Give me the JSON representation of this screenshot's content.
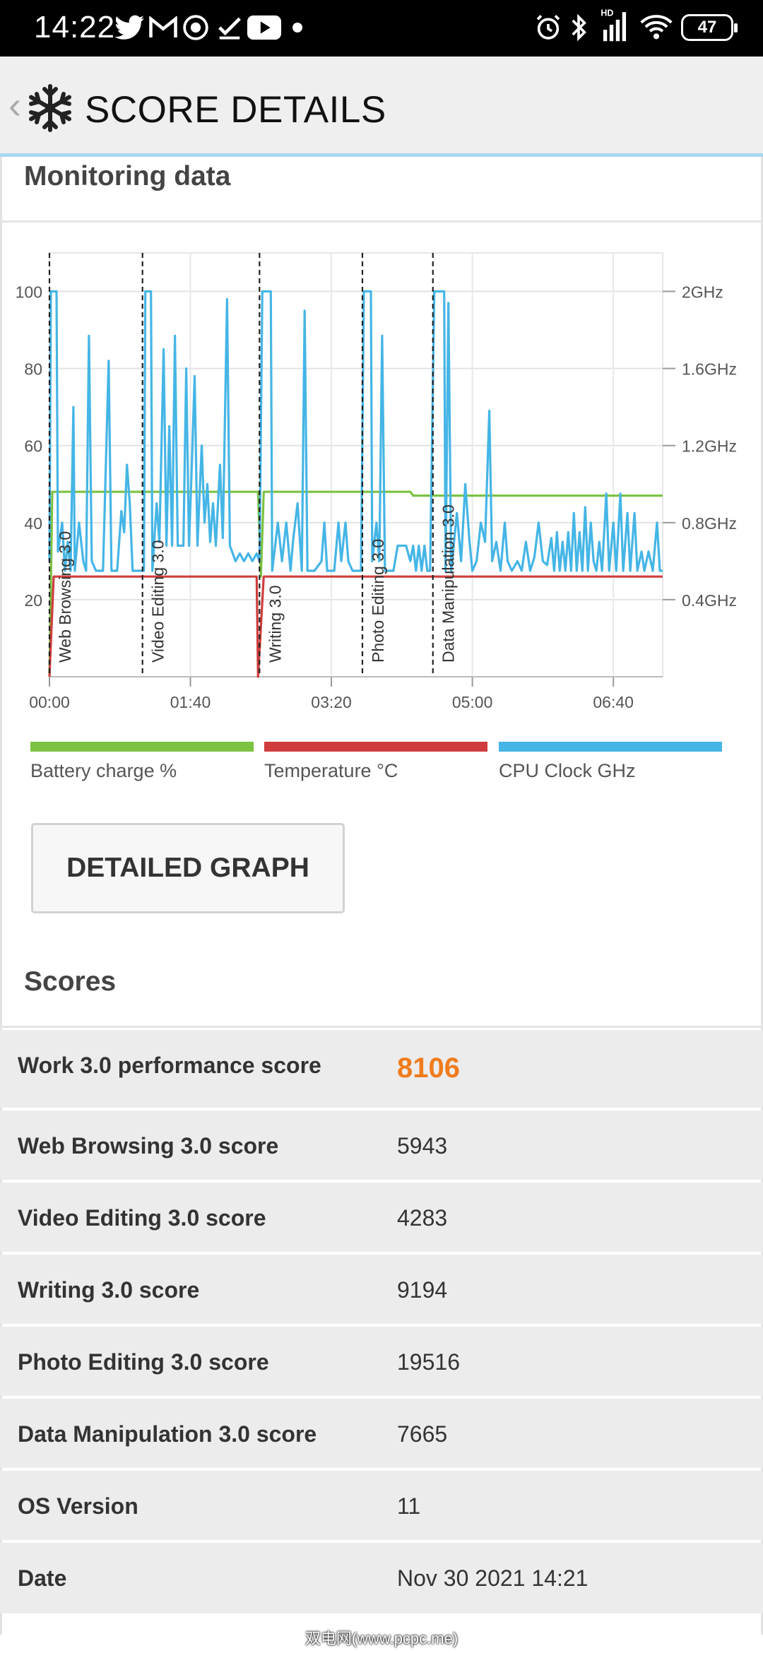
{
  "status_bar": {
    "time": "14:22",
    "battery_level": "47",
    "left_icons": [
      "twitter-icon",
      "gmail-icon",
      "screen-record-icon",
      "task-check-icon",
      "youtube-icon",
      "notification-dot-icon"
    ],
    "right_icons": [
      "alarm-icon",
      "bluetooth-icon",
      "signal-icon",
      "wifi-icon",
      "battery-icon"
    ],
    "network_badge": "HD"
  },
  "header": {
    "back_icon": "chevron-left-icon",
    "logo_icon": "snowflake-icon",
    "title": "SCORE DETAILS"
  },
  "monitoring": {
    "section_title": "Monitoring data",
    "legend": [
      {
        "label": "Battery charge %",
        "color": "#7cc243"
      },
      {
        "label": "Temperature °C",
        "color": "#cf3d3d"
      },
      {
        "label": "CPU Clock GHz",
        "color": "#45b5e6"
      }
    ],
    "button_label": "DETAILED GRAPH"
  },
  "chart_data": {
    "type": "line",
    "x_unit": "minutes",
    "x_ticks": [
      "00:00",
      "01:40",
      "03:20",
      "05:00",
      "06:40"
    ],
    "x_tick_values": [
      0,
      100,
      200,
      300,
      400
    ],
    "xlim": [
      0,
      435
    ],
    "ylim_left": [
      0,
      110
    ],
    "left_ticks": [
      "100",
      "80",
      "60",
      "40",
      "20"
    ],
    "left_tick_values": [
      100,
      80,
      60,
      40,
      20
    ],
    "ylim_right_ghz": [
      0,
      2.2
    ],
    "right_ticks": [
      "2GHz",
      "1.6GHz",
      "1.2GHz",
      "0.8GHz",
      "0.4GHz"
    ],
    "right_tick_values": [
      2.0,
      1.6,
      1.2,
      0.8,
      0.4
    ],
    "grid": true,
    "phase_markers": [
      {
        "label": "Web Browsing 3.0",
        "x": 0
      },
      {
        "label": "Video Editing 3.0",
        "x": 66
      },
      {
        "label": "Writing 3.0",
        "x": 149
      },
      {
        "label": "Photo Editing 3.0",
        "x": 222
      },
      {
        "label": "Data Manipulation 3.0",
        "x": 272
      }
    ],
    "series": [
      {
        "name": "Battery charge %",
        "axis": "left",
        "color": "#7cc243",
        "points": [
          [
            0,
            0
          ],
          [
            2,
            48
          ],
          [
            100,
            48
          ],
          [
            148,
            48
          ],
          [
            150,
            26
          ],
          [
            152,
            48
          ],
          [
            200,
            48
          ],
          [
            256,
            48
          ],
          [
            258,
            47
          ],
          [
            435,
            47
          ]
        ]
      },
      {
        "name": "Temperature °C",
        "axis": "left",
        "color": "#cf3d3d",
        "points": [
          [
            0,
            0
          ],
          [
            3,
            26
          ],
          [
            147,
            26
          ],
          [
            148,
            0
          ],
          [
            152,
            26
          ],
          [
            435,
            26
          ]
        ]
      },
      {
        "name": "CPU Clock GHz",
        "axis": "right",
        "color": "#45b5e6",
        "points": [
          [
            0,
            0.6
          ],
          [
            1,
            2.0
          ],
          [
            5,
            2.0
          ],
          [
            6,
            0.65
          ],
          [
            9,
            0.8
          ],
          [
            11,
            0.55
          ],
          [
            13,
            0.7
          ],
          [
            15,
            0.55
          ],
          [
            17,
            1.4
          ],
          [
            18,
            0.55
          ],
          [
            21,
            0.8
          ],
          [
            24,
            0.6
          ],
          [
            26,
            0.55
          ],
          [
            28,
            1.77
          ],
          [
            30,
            0.6
          ],
          [
            33,
            0.55
          ],
          [
            38,
            0.55
          ],
          [
            42,
            1.64
          ],
          [
            44,
            0.55
          ],
          [
            48,
            0.55
          ],
          [
            51,
            0.86
          ],
          [
            53,
            0.75
          ],
          [
            55,
            1.1
          ],
          [
            57,
            0.9
          ],
          [
            59,
            0.55
          ],
          [
            63,
            0.55
          ],
          [
            67,
            0.55
          ],
          [
            68,
            2.0
          ],
          [
            72,
            2.0
          ],
          [
            73,
            0.55
          ],
          [
            76,
            0.9
          ],
          [
            78,
            0.7
          ],
          [
            81,
            1.7
          ],
          [
            83,
            0.68
          ],
          [
            85,
            1.3
          ],
          [
            87,
            0.68
          ],
          [
            89,
            1.77
          ],
          [
            91,
            0.68
          ],
          [
            95,
            0.68
          ],
          [
            97,
            1.6
          ],
          [
            99,
            0.68
          ],
          [
            101,
            1.1
          ],
          [
            103,
            1.56
          ],
          [
            105,
            0.68
          ],
          [
            108,
            1.2
          ],
          [
            110,
            0.8
          ],
          [
            112,
            1.0
          ],
          [
            114,
            0.7
          ],
          [
            116,
            0.9
          ],
          [
            118,
            0.68
          ],
          [
            121,
            1.1
          ],
          [
            123,
            0.72
          ],
          [
            126,
            1.96
          ],
          [
            128,
            0.68
          ],
          [
            132,
            0.6
          ],
          [
            135,
            0.64
          ],
          [
            138,
            0.6
          ],
          [
            141,
            0.64
          ],
          [
            144,
            0.6
          ],
          [
            147,
            0.64
          ],
          [
            149,
            0.6
          ],
          [
            151,
            2.0
          ],
          [
            157,
            2.0
          ],
          [
            158,
            0.55
          ],
          [
            162,
            0.8
          ],
          [
            165,
            0.6
          ],
          [
            168,
            0.8
          ],
          [
            171,
            0.55
          ],
          [
            173,
            0.72
          ],
          [
            176,
            0.9
          ],
          [
            179,
            0.55
          ],
          [
            181,
            1.9
          ],
          [
            183,
            0.55
          ],
          [
            188,
            0.55
          ],
          [
            193,
            0.6
          ],
          [
            195,
            0.8
          ],
          [
            197,
            0.55
          ],
          [
            202,
            0.55
          ],
          [
            205,
            0.8
          ],
          [
            207,
            0.6
          ],
          [
            210,
            0.8
          ],
          [
            212,
            0.6
          ],
          [
            215,
            0.55
          ],
          [
            219,
            0.55
          ],
          [
            221,
            0.55
          ],
          [
            223,
            2.0
          ],
          [
            228,
            2.0
          ],
          [
            229,
            0.6
          ],
          [
            232,
            0.8
          ],
          [
            234,
            0.6
          ],
          [
            236,
            1.77
          ],
          [
            238,
            0.55
          ],
          [
            241,
            0.55
          ],
          [
            244,
            0.55
          ],
          [
            247,
            0.68
          ],
          [
            250,
            0.68
          ],
          [
            253,
            0.68
          ],
          [
            256,
            0.6
          ],
          [
            258,
            0.68
          ],
          [
            260,
            0.55
          ],
          [
            262,
            0.68
          ],
          [
            264,
            0.55
          ],
          [
            266,
            0.68
          ],
          [
            268,
            0.55
          ],
          [
            270,
            0.55
          ],
          [
            273,
            2.0
          ],
          [
            280,
            2.0
          ],
          [
            281,
            0.55
          ],
          [
            283,
            1.94
          ],
          [
            285,
            0.55
          ],
          [
            289,
            0.85
          ],
          [
            292,
            0.6
          ],
          [
            295,
            1.0
          ],
          [
            298,
            0.7
          ],
          [
            300,
            0.55
          ],
          [
            303,
            0.6
          ],
          [
            306,
            0.8
          ],
          [
            309,
            0.7
          ],
          [
            312,
            1.38
          ],
          [
            314,
            0.6
          ],
          [
            317,
            0.7
          ],
          [
            320,
            0.55
          ],
          [
            323,
            0.8
          ],
          [
            325,
            0.6
          ],
          [
            328,
            0.55
          ],
          [
            332,
            0.6
          ],
          [
            335,
            0.55
          ],
          [
            338,
            0.7
          ],
          [
            341,
            0.55
          ],
          [
            344,
            0.62
          ],
          [
            347,
            0.8
          ],
          [
            350,
            0.6
          ],
          [
            353,
            0.58
          ],
          [
            356,
            0.72
          ],
          [
            358,
            0.55
          ],
          [
            360,
            0.75
          ],
          [
            362,
            0.55
          ],
          [
            364,
            0.7
          ],
          [
            366,
            0.55
          ],
          [
            368,
            0.75
          ],
          [
            370,
            0.55
          ],
          [
            372,
            0.85
          ],
          [
            374,
            0.55
          ],
          [
            376,
            0.75
          ],
          [
            378,
            0.55
          ],
          [
            380,
            0.88
          ],
          [
            382,
            0.55
          ],
          [
            384,
            0.8
          ],
          [
            386,
            0.6
          ],
          [
            388,
            0.55
          ],
          [
            390,
            0.7
          ],
          [
            392,
            0.55
          ],
          [
            395,
            0.95
          ],
          [
            397,
            0.55
          ],
          [
            400,
            0.8
          ],
          [
            402,
            0.55
          ],
          [
            405,
            0.95
          ],
          [
            407,
            0.55
          ],
          [
            410,
            0.85
          ],
          [
            412,
            0.55
          ],
          [
            415,
            0.85
          ],
          [
            417,
            0.55
          ],
          [
            420,
            0.65
          ],
          [
            422,
            0.55
          ],
          [
            425,
            0.65
          ],
          [
            428,
            0.55
          ],
          [
            431,
            0.8
          ],
          [
            433,
            0.55
          ],
          [
            435,
            0.55
          ]
        ]
      }
    ]
  },
  "scores": {
    "section_title": "Scores",
    "rows": [
      {
        "label": "Work 3.0 performance score",
        "value": "8106",
        "highlight": true
      },
      {
        "label": "Web Browsing 3.0 score",
        "value": "5943"
      },
      {
        "label": "Video Editing 3.0 score",
        "value": "4283"
      },
      {
        "label": "Writing 3.0 score",
        "value": "9194"
      },
      {
        "label": "Photo Editing 3.0 score",
        "value": "19516"
      },
      {
        "label": "Data Manipulation 3.0 score",
        "value": "7665"
      },
      {
        "label": "OS Version",
        "value": "11"
      },
      {
        "label": "Date",
        "value": "Nov 30 2021 14:21"
      }
    ]
  },
  "watermark": {
    "text": "双电网(www.pcpc.me)"
  }
}
